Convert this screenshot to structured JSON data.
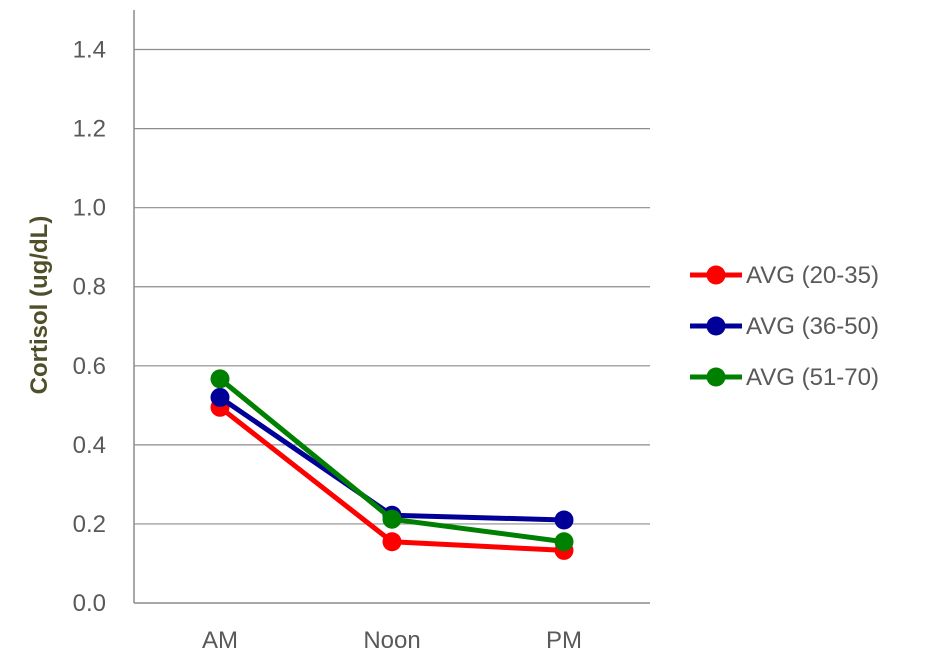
{
  "chart_data": {
    "type": "line",
    "title": "",
    "xlabel": "",
    "ylabel": "Cortisol (ug/dL)",
    "categories": [
      "AM",
      "Noon",
      "PM"
    ],
    "ylim": [
      0,
      1.5
    ],
    "yticks": [
      0.0,
      0.2,
      0.4,
      0.6,
      0.8,
      1.0,
      1.2,
      1.4
    ],
    "ytick_labels": [
      "0.0",
      "0.2",
      "0.4",
      "0.6",
      "0.8",
      "1.0",
      "1.2",
      "1.4"
    ],
    "grid": "horizontal",
    "legend_position": "right",
    "series": [
      {
        "name": "AVG (20-35)",
        "color": "#ff0000",
        "values": [
          0.495,
          0.155,
          0.133
        ]
      },
      {
        "name": "AVG (36-50)",
        "color": "#000099",
        "values": [
          0.52,
          0.222,
          0.21
        ]
      },
      {
        "name": "AVG (51-70)",
        "color": "#008000",
        "values": [
          0.567,
          0.212,
          0.155
        ]
      }
    ]
  }
}
